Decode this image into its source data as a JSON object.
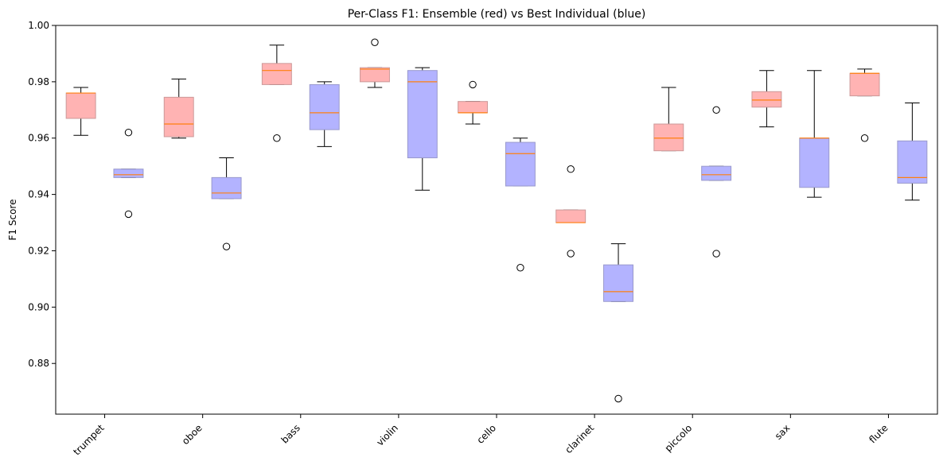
{
  "chart_data": {
    "type": "box",
    "title": "Per-Class F1: Ensemble (red) vs Best Individual (blue)",
    "xlabel": "",
    "ylabel": "F1 Score",
    "ylim": [
      0.862,
      1.0
    ],
    "yticks": [
      0.88,
      0.9,
      0.92,
      0.94,
      0.96,
      0.98,
      1.0
    ],
    "ytick_labels": [
      "0.88",
      "0.90",
      "0.92",
      "0.94",
      "0.96",
      "0.98",
      "1.00"
    ],
    "categories": [
      "trumpet",
      "oboe",
      "bass",
      "violin",
      "cello",
      "clarinet",
      "piccolo",
      "sax",
      "flute"
    ],
    "colors": {
      "ensemble_fill": "#ffb3b3",
      "ensemble_edge": "#cc9999",
      "individual_fill": "#b3b3ff",
      "individual_edge": "#9999cc",
      "median": "#ff7f0e",
      "whisker": "#000000"
    },
    "series": [
      {
        "color_key": "ensemble",
        "boxes": [
          {
            "whislo": 0.961,
            "q1": 0.967,
            "med": 0.976,
            "q3": 0.976,
            "whishi": 0.978,
            "fliers": []
          },
          {
            "whislo": 0.96,
            "q1": 0.9605,
            "med": 0.965,
            "q3": 0.9745,
            "whishi": 0.981,
            "fliers": []
          },
          {
            "whislo": 0.979,
            "q1": 0.979,
            "med": 0.984,
            "q3": 0.9865,
            "whishi": 0.993,
            "fliers": [
              0.96
            ]
          },
          {
            "whislo": 0.978,
            "q1": 0.98,
            "med": 0.9845,
            "q3": 0.985,
            "whishi": 0.985,
            "fliers": [
              0.994
            ]
          },
          {
            "whislo": 0.965,
            "q1": 0.969,
            "med": 0.969,
            "q3": 0.973,
            "whishi": 0.973,
            "fliers": [
              0.979
            ]
          },
          {
            "whislo": 0.93,
            "q1": 0.93,
            "med": 0.93,
            "q3": 0.9345,
            "whishi": 0.9345,
            "fliers": [
              0.949,
              0.919
            ]
          },
          {
            "whislo": 0.9555,
            "q1": 0.9555,
            "med": 0.96,
            "q3": 0.965,
            "whishi": 0.978,
            "fliers": []
          },
          {
            "whislo": 0.964,
            "q1": 0.971,
            "med": 0.9735,
            "q3": 0.9765,
            "whishi": 0.984,
            "fliers": []
          },
          {
            "whislo": 0.975,
            "q1": 0.975,
            "med": 0.983,
            "q3": 0.983,
            "whishi": 0.9845,
            "fliers": [
              0.96
            ]
          }
        ]
      },
      {
        "color_key": "individual",
        "boxes": [
          {
            "whislo": 0.946,
            "q1": 0.946,
            "med": 0.947,
            "q3": 0.949,
            "whishi": 0.949,
            "fliers": [
              0.962,
              0.933
            ]
          },
          {
            "whislo": 0.9385,
            "q1": 0.9385,
            "med": 0.9405,
            "q3": 0.946,
            "whishi": 0.953,
            "fliers": [
              0.9215
            ]
          },
          {
            "whislo": 0.957,
            "q1": 0.963,
            "med": 0.969,
            "q3": 0.979,
            "whishi": 0.98,
            "fliers": []
          },
          {
            "whislo": 0.9415,
            "q1": 0.953,
            "med": 0.98,
            "q3": 0.984,
            "whishi": 0.985,
            "fliers": []
          },
          {
            "whislo": 0.943,
            "q1": 0.943,
            "med": 0.9545,
            "q3": 0.9585,
            "whishi": 0.96,
            "fliers": [
              0.914
            ]
          },
          {
            "whislo": 0.902,
            "q1": 0.902,
            "med": 0.9055,
            "q3": 0.915,
            "whishi": 0.9225,
            "fliers": [
              0.8675
            ]
          },
          {
            "whislo": 0.945,
            "q1": 0.945,
            "med": 0.947,
            "q3": 0.95,
            "whishi": 0.95,
            "fliers": [
              0.97,
              0.919
            ]
          },
          {
            "whislo": 0.939,
            "q1": 0.9425,
            "med": 0.96,
            "q3": 0.96,
            "whishi": 0.984,
            "fliers": []
          },
          {
            "whislo": 0.938,
            "q1": 0.944,
            "med": 0.946,
            "q3": 0.959,
            "whishi": 0.9725,
            "fliers": []
          }
        ]
      }
    ]
  }
}
